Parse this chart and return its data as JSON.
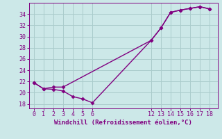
{
  "line1_x": [
    0,
    1,
    2,
    3,
    4,
    5,
    6,
    12,
    13,
    14,
    15,
    16,
    17,
    18
  ],
  "line1_y": [
    21.8,
    20.7,
    20.6,
    20.3,
    19.3,
    18.9,
    18.2,
    29.3,
    31.5,
    34.3,
    34.7,
    35.0,
    35.3,
    34.9
  ],
  "line2_x": [
    0,
    1,
    2,
    3,
    12,
    13,
    14,
    15,
    16,
    17,
    18
  ],
  "line2_y": [
    21.8,
    20.7,
    21.0,
    21.0,
    29.3,
    31.5,
    34.3,
    34.7,
    35.0,
    35.3,
    34.9
  ],
  "color": "#800080",
  "bg_color": "#cce8e8",
  "grid_color": "#aacccc",
  "xlabel": "Windchill (Refroidissement éolien,°C)",
  "xticks": [
    0,
    1,
    2,
    3,
    4,
    5,
    6,
    12,
    13,
    14,
    15,
    16,
    17,
    18
  ],
  "yticks": [
    18,
    20,
    22,
    24,
    26,
    28,
    30,
    32,
    34
  ],
  "ylim": [
    17.2,
    36.0
  ],
  "xlim": [
    -0.5,
    18.8
  ],
  "marker": "D",
  "markersize": 2.5,
  "linewidth": 1.0,
  "xlabel_color": "#800080",
  "xlabel_fontsize": 6.5,
  "tick_fontsize": 6,
  "tick_color": "#800080"
}
